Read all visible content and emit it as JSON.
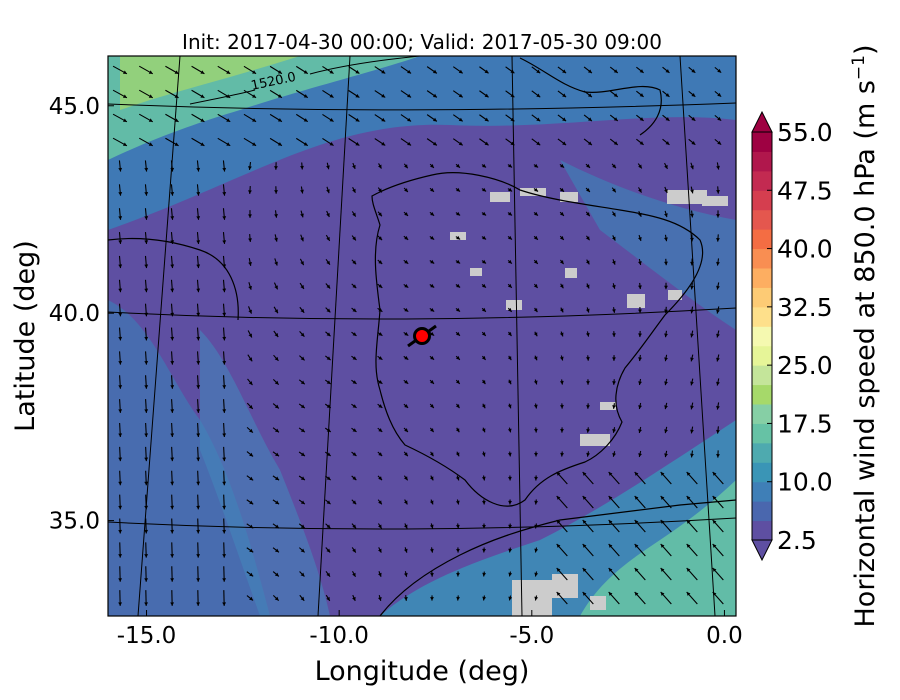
{
  "title": "Init: 2017-04-30 00:00; Valid: 2017-05-30 09:00",
  "chart_data": {
    "type": "heatmap",
    "subtype": "map with wind-vector overlay",
    "xlabel": "Longitude (deg)",
    "ylabel": "Latitude (deg)",
    "xlim": [
      -16.0,
      0.3
    ],
    "ylim": [
      32.7,
      46.2
    ],
    "xticks": [
      "-15.0",
      "-10.0",
      "-5.0",
      "0.0"
    ],
    "xtick_values": [
      -15,
      -10,
      -5,
      0
    ],
    "yticks": [
      "35.0",
      "40.0",
      "45.0"
    ],
    "ytick_values": [
      35,
      40,
      45
    ],
    "contour_label": "1520.0",
    "colorbar": {
      "label": "Horizontal wind speed at 850.0 hPa (m s",
      "unit_sup": "−1",
      "label_close": ")",
      "min": 2.5,
      "max": 55,
      "step": 2.5,
      "extend": "both",
      "tick_labels": [
        "2.5",
        "10.0",
        "17.5",
        "25.0",
        "32.5",
        "40.0",
        "47.5",
        "55.0"
      ],
      "tick_values": [
        2.5,
        10,
        17.5,
        25,
        32.5,
        40,
        47.5,
        55
      ]
    },
    "marker": {
      "lon": -7.7,
      "lat": 39.4,
      "color": "#ff0000"
    },
    "colors": {
      "background_field": "#5e4fa2",
      "land_outline": "#000000",
      "missing_terrain": "#cccccc"
    }
  }
}
